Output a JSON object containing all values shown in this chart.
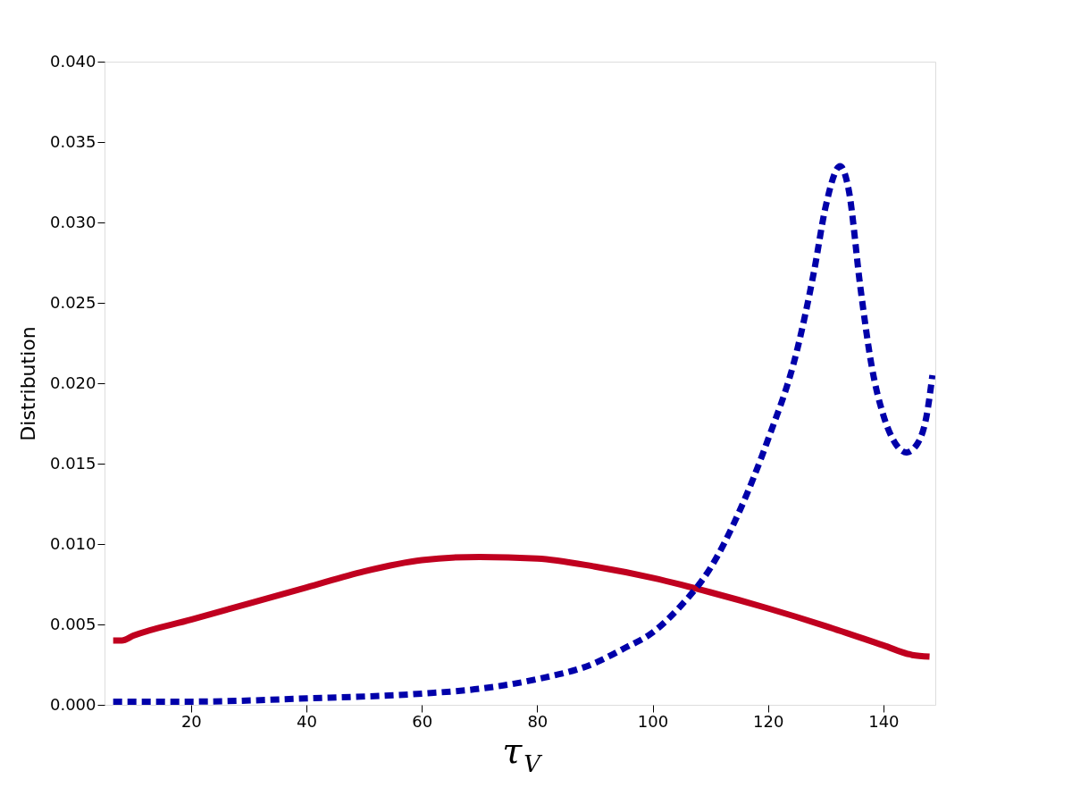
{
  "chart_data": {
    "type": "line",
    "xlabel": "τ$_{V}$",
    "ylabel": "Distribution",
    "xlim": [
      5,
      149
    ],
    "xticks": [
      20,
      40,
      60,
      80,
      100,
      120,
      140
    ],
    "ylim": [
      0,
      0.04
    ],
    "yticks": [
      {
        "value": 0,
        "label": "0.000"
      },
      {
        "value": 0.005,
        "label": "0.005"
      },
      {
        "value": 0.01,
        "label": "0.010"
      },
      {
        "value": 0.015,
        "label": "0.015"
      },
      {
        "value": 0.02,
        "label": "0.020"
      },
      {
        "value": 0.025,
        "label": "0.025"
      },
      {
        "value": 0.03,
        "label": "0.030"
      },
      {
        "value": 0.035,
        "label": "0.035"
      },
      {
        "value": 0.04,
        "label": "0.040"
      }
    ],
    "grid": false,
    "legend": false,
    "series": [
      {
        "color": "#c0001f",
        "line_style": "solid",
        "x": [
          6.5,
          8,
          10,
          20,
          30,
          40,
          50,
          60,
          70,
          80,
          90,
          100,
          110,
          120,
          130,
          140,
          145,
          148
        ],
        "values": [
          0.004,
          0.004,
          0.0043,
          0.0053,
          0.0063,
          0.0073,
          0.0083,
          0.009,
          0.0092,
          0.0091,
          0.0086,
          0.0079,
          0.007,
          0.006,
          0.0049,
          0.0037,
          0.0031,
          0.003
        ]
      },
      {
        "color": "#0000aa",
        "line_style": "dashed",
        "x": [
          6.5,
          20,
          40,
          60,
          70,
          80,
          90,
          95,
          100,
          105,
          110,
          115,
          120,
          125,
          128,
          130,
          132.5,
          134,
          136,
          138,
          140,
          142,
          144,
          146,
          147.5,
          148.5
        ],
        "values": [
          0.0002,
          0.0002,
          0.0004,
          0.0007,
          0.001,
          0.0016,
          0.0026,
          0.0035,
          0.0045,
          0.0062,
          0.0085,
          0.012,
          0.0165,
          0.022,
          0.027,
          0.031,
          0.0335,
          0.032,
          0.026,
          0.021,
          0.018,
          0.0163,
          0.0157,
          0.0163,
          0.018,
          0.0205
        ]
      }
    ]
  }
}
